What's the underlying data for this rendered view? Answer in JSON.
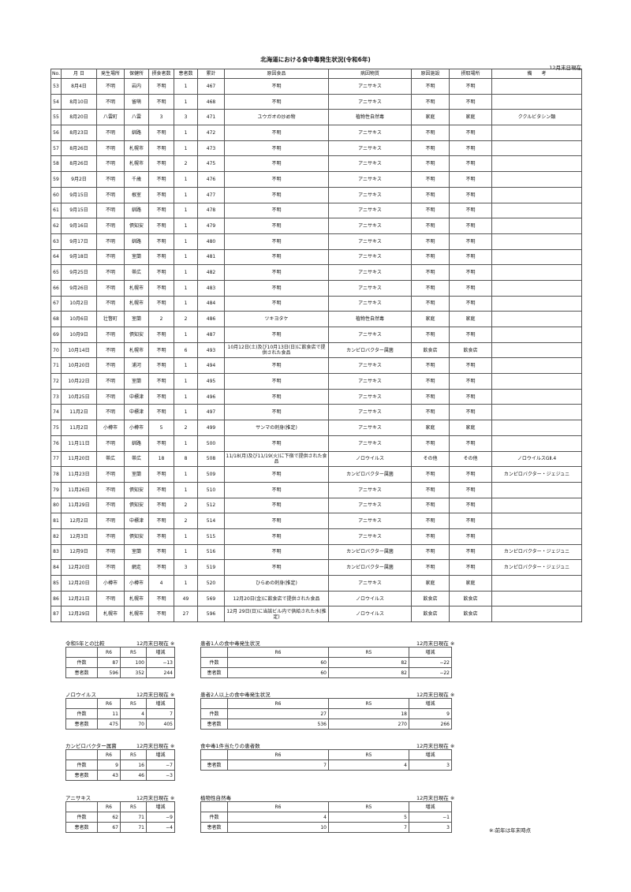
{
  "title": "北海道における食中毒発生状況(令和6年)",
  "as_of": "12月末日現在",
  "headers": [
    "No.",
    "月 日",
    "発生場所",
    "保健所",
    "摂食者数",
    "患者数",
    "累計",
    "原因食品",
    "病因物質",
    "原因施設",
    "摂取場所",
    "備　　考"
  ],
  "rows": [
    [
      "53",
      "8月4日",
      "不明",
      "岩内",
      "不明",
      "1",
      "467",
      "不明",
      "アニサキス",
      "不明",
      "不明",
      ""
    ],
    [
      "54",
      "8月10日",
      "不明",
      "留萌",
      "不明",
      "1",
      "468",
      "不明",
      "アニサキス",
      "不明",
      "不明",
      ""
    ],
    [
      "55",
      "8月20日",
      "八雲町",
      "八雲",
      "3",
      "3",
      "471",
      "ユウガオの炒め物",
      "植物性自然毒",
      "家庭",
      "家庭",
      "ククルビタシン類"
    ],
    [
      "56",
      "8月23日",
      "不明",
      "釧路",
      "不明",
      "1",
      "472",
      "不明",
      "アニサキス",
      "不明",
      "不明",
      ""
    ],
    [
      "57",
      "8月26日",
      "不明",
      "札幌市",
      "不明",
      "1",
      "473",
      "不明",
      "アニサキス",
      "不明",
      "不明",
      ""
    ],
    [
      "58",
      "8月26日",
      "不明",
      "札幌市",
      "不明",
      "2",
      "475",
      "不明",
      "アニサキス",
      "不明",
      "不明",
      ""
    ],
    [
      "59",
      "9月2日",
      "不明",
      "千歳",
      "不明",
      "1",
      "476",
      "不明",
      "アニサキス",
      "不明",
      "不明",
      ""
    ],
    [
      "60",
      "9月15日",
      "不明",
      "根室",
      "不明",
      "1",
      "477",
      "不明",
      "アニサキス",
      "不明",
      "不明",
      ""
    ],
    [
      "61",
      "9月15日",
      "不明",
      "釧路",
      "不明",
      "1",
      "478",
      "不明",
      "アニサキス",
      "不明",
      "不明",
      ""
    ],
    [
      "62",
      "9月16日",
      "不明",
      "倶知安",
      "不明",
      "1",
      "479",
      "不明",
      "アニサキス",
      "不明",
      "不明",
      ""
    ],
    [
      "63",
      "9月17日",
      "不明",
      "釧路",
      "不明",
      "1",
      "480",
      "不明",
      "アニサキス",
      "不明",
      "不明",
      ""
    ],
    [
      "64",
      "9月18日",
      "不明",
      "室蘭",
      "不明",
      "1",
      "481",
      "不明",
      "アニサキス",
      "不明",
      "不明",
      ""
    ],
    [
      "65",
      "9月25日",
      "不明",
      "帯広",
      "不明",
      "1",
      "482",
      "不明",
      "アニサキス",
      "不明",
      "不明",
      ""
    ],
    [
      "66",
      "9月26日",
      "不明",
      "札幌市",
      "不明",
      "1",
      "483",
      "不明",
      "アニサキス",
      "不明",
      "不明",
      ""
    ],
    [
      "67",
      "10月2日",
      "不明",
      "札幌市",
      "不明",
      "1",
      "484",
      "不明",
      "アニサキス",
      "不明",
      "不明",
      ""
    ],
    [
      "68",
      "10月6日",
      "壮瞥町",
      "室蘭",
      "2",
      "2",
      "486",
      "ツキヨタケ",
      "植物性自然毒",
      "家庭",
      "家庭",
      ""
    ],
    [
      "69",
      "10月9日",
      "不明",
      "倶知安",
      "不明",
      "1",
      "487",
      "不明",
      "アニサキス",
      "不明",
      "不明",
      ""
    ],
    [
      "70",
      "10月14日",
      "不明",
      "札幌市",
      "不明",
      "6",
      "493",
      "10月12日(土)及び10月13日(日)に飲食店で提供された食品",
      "カンピロバクター属菌",
      "飲食店",
      "飲食店",
      ""
    ],
    [
      "71",
      "10月20日",
      "不明",
      "浦河",
      "不明",
      "1",
      "494",
      "不明",
      "アニサキス",
      "不明",
      "不明",
      ""
    ],
    [
      "72",
      "10月22日",
      "不明",
      "室蘭",
      "不明",
      "1",
      "495",
      "不明",
      "アニサキス",
      "不明",
      "不明",
      ""
    ],
    [
      "73",
      "10月25日",
      "不明",
      "中標津",
      "不明",
      "1",
      "496",
      "不明",
      "アニサキス",
      "不明",
      "不明",
      ""
    ],
    [
      "74",
      "11月2日",
      "不明",
      "中標津",
      "不明",
      "1",
      "497",
      "不明",
      "アニサキス",
      "不明",
      "不明",
      ""
    ],
    [
      "75",
      "11月2日",
      "小樽市",
      "小樽市",
      "5",
      "2",
      "499",
      "サンマの刺身(推定)",
      "アニサキス",
      "家庭",
      "家庭",
      ""
    ],
    [
      "76",
      "11月11日",
      "不明",
      "釧路",
      "不明",
      "1",
      "500",
      "不明",
      "アニサキス",
      "不明",
      "不明",
      ""
    ],
    [
      "77",
      "11月20日",
      "帯広",
      "帯広",
      "18",
      "8",
      "508",
      "11/18(月)及び11/19(火)に下宿で提供された食品",
      "ノロウイルス",
      "その他",
      "その他",
      "ノロウイルスGⅡ.4"
    ],
    [
      "78",
      "11月23日",
      "不明",
      "室蘭",
      "不明",
      "1",
      "509",
      "不明",
      "カンピロバクター属菌",
      "不明",
      "不明",
      "カンピロバクター・ジェジュニ"
    ],
    [
      "79",
      "11月26日",
      "不明",
      "倶知安",
      "不明",
      "1",
      "510",
      "不明",
      "アニサキス",
      "不明",
      "不明",
      ""
    ],
    [
      "80",
      "11月29日",
      "不明",
      "倶知安",
      "不明",
      "2",
      "512",
      "不明",
      "アニサキス",
      "不明",
      "不明",
      ""
    ],
    [
      "81",
      "12月2日",
      "不明",
      "中標津",
      "不明",
      "2",
      "514",
      "不明",
      "アニサキス",
      "不明",
      "不明",
      ""
    ],
    [
      "82",
      "12月3日",
      "不明",
      "倶知安",
      "不明",
      "1",
      "515",
      "不明",
      "アニサキス",
      "不明",
      "不明",
      ""
    ],
    [
      "83",
      "12月9日",
      "不明",
      "室蘭",
      "不明",
      "1",
      "516",
      "不明",
      "カンピロバクター属菌",
      "不明",
      "不明",
      "カンピロバクター・ジェジュニ"
    ],
    [
      "84",
      "12月20日",
      "不明",
      "網走",
      "不明",
      "3",
      "519",
      "不明",
      "カンピロバクター属菌",
      "不明",
      "不明",
      "カンピロバクター・ジェジュニ"
    ],
    [
      "85",
      "12月20日",
      "小樽市",
      "小樽市",
      "4",
      "1",
      "520",
      "ひらめの刺身(推定)",
      "アニサキス",
      "家庭",
      "家庭",
      ""
    ],
    [
      "86",
      "12月21日",
      "不明",
      "札幌市",
      "不明",
      "49",
      "569",
      "12月20日(金)に飲食店で提供された食品",
      "ノロウイルス",
      "飲食店",
      "飲食店",
      ""
    ],
    [
      "87",
      "12月29日",
      "札幌市",
      "札幌市",
      "不明",
      "27",
      "596",
      "12月 29日(日)に当該ビル内で供給された水(推定)",
      "ノロウイルス",
      "飲食店",
      "飲食店",
      ""
    ]
  ],
  "summary_tables": [
    {
      "title": "令和5年との比較",
      "as_of": "12月末日現在 ※",
      "cols": [
        "",
        "R6",
        "R5",
        "増減"
      ],
      "rows": [
        [
          "件数",
          "87",
          "100",
          "−13"
        ],
        [
          "患者数",
          "596",
          "352",
          "244"
        ]
      ]
    },
    {
      "title": "患者1人の食中毒発生状況",
      "as_of": "12月末日現在 ※",
      "cols": [
        "",
        "R6",
        "R5",
        "増減"
      ],
      "rows": [
        [
          "件数",
          "60",
          "82",
          "−22"
        ],
        [
          "患者数",
          "60",
          "82",
          "−22"
        ]
      ]
    },
    {
      "title": "ノロウイルス",
      "as_of": "12月末日現在 ※",
      "cols": [
        "",
        "R6",
        "R5",
        "増減"
      ],
      "rows": [
        [
          "件数",
          "11",
          "4",
          "7"
        ],
        [
          "患者数",
          "475",
          "70",
          "405"
        ]
      ]
    },
    {
      "title": "患者2人以上の食中毒発生状況",
      "as_of": "12月末日現在 ※",
      "cols": [
        "",
        "R6",
        "R5",
        "増減"
      ],
      "rows": [
        [
          "件数",
          "27",
          "18",
          "9"
        ],
        [
          "患者数",
          "536",
          "270",
          "266"
        ]
      ]
    },
    {
      "title": "カンピロバクター属菌",
      "as_of": "12月末日現在 ※",
      "cols": [
        "",
        "R6",
        "R5",
        "増減"
      ],
      "rows": [
        [
          "件数",
          "9",
          "16",
          "−7"
        ],
        [
          "患者数",
          "43",
          "46",
          "−3"
        ]
      ]
    },
    {
      "title": "食中毒1件当たりの患者数",
      "as_of": "12月末日現在 ※",
      "cols": [
        "",
        "R6",
        "R5",
        "増減"
      ],
      "rows": [
        [
          "患者数",
          "7",
          "4",
          "3"
        ]
      ]
    },
    {
      "title": "アニサキス",
      "as_of": "12月末日現在 ※",
      "cols": [
        "",
        "R6",
        "R5",
        "増減"
      ],
      "rows": [
        [
          "件数",
          "62",
          "71",
          "−9"
        ],
        [
          "患者数",
          "67",
          "71",
          "−4"
        ]
      ]
    },
    {
      "title": "植物性自然毒",
      "as_of": "12月末日現在 ※",
      "cols": [
        "",
        "R6",
        "R5",
        "増減"
      ],
      "rows": [
        [
          "件数",
          "4",
          "5",
          "−1"
        ],
        [
          "患者数",
          "10",
          "7",
          "3"
        ]
      ]
    }
  ],
  "footnote": "※:前年は年末時点"
}
